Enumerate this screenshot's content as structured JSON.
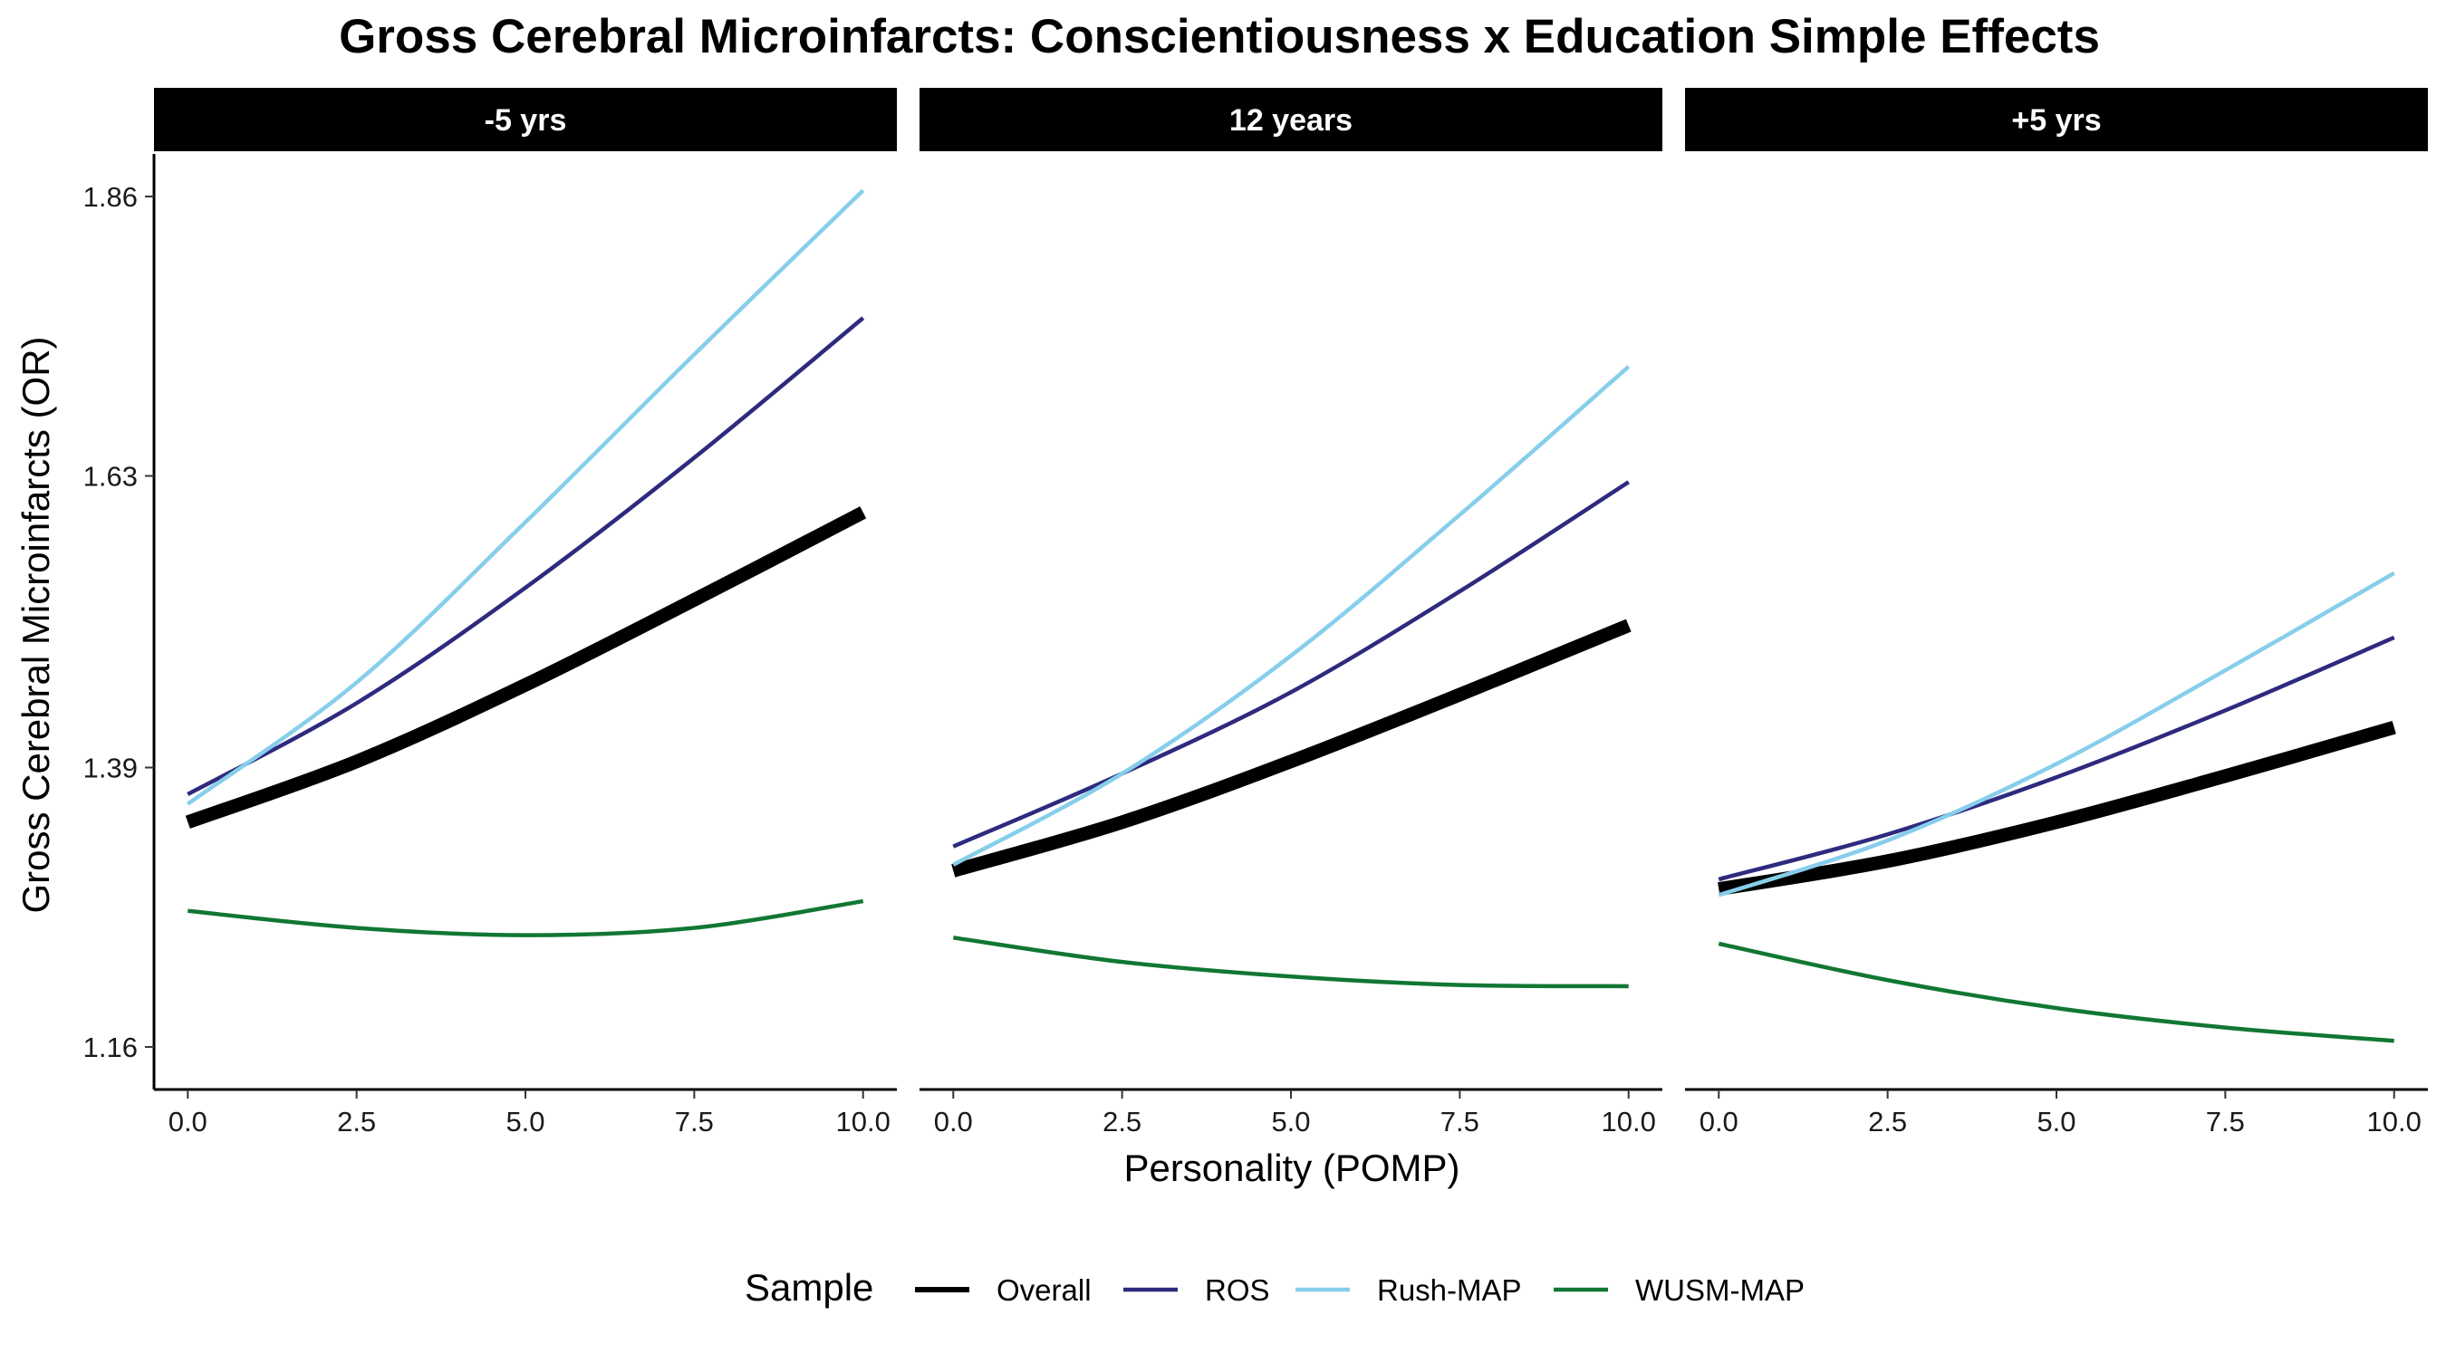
{
  "title": "Gross Cerebral Microinfarcts: Conscientiousness x Education Simple Effects",
  "xlabel": "Personality (POMP)",
  "ylabel": "Gross Cerebral Microinfarcts (OR)",
  "legend": {
    "title": "Sample",
    "items": [
      "Overall",
      "ROS",
      "Rush-MAP",
      "WUSM-MAP"
    ]
  },
  "colors": {
    "Overall": "#000000",
    "ROS": "#2e2a7e",
    "Rush-MAP": "#87ceeb",
    "WUSM-MAP": "#117733"
  },
  "chart_data": {
    "type": "line",
    "title": "Gross Cerebral Microinfarcts: Conscientiousness x Education Simple Effects",
    "xlabel": "Personality (POMP)",
    "ylabel": "Gross Cerebral Microinfarcts (OR)",
    "xlim": [
      -0.5,
      10.5
    ],
    "ylim": [
      1.125,
      1.895
    ],
    "x_ticks": [
      0,
      2.5,
      5,
      7.5,
      10
    ],
    "x_tick_labels": [
      "0.0",
      "2.5",
      "5.0",
      "7.5",
      "10.0"
    ],
    "y_ticks": [
      1.16,
      1.39,
      1.63,
      1.86
    ],
    "y_tick_labels": [
      "1.16",
      "1.39",
      "1.63",
      "1.86"
    ],
    "x": [
      0,
      2.5,
      5,
      7.5,
      10
    ],
    "legend_position": "bottom",
    "grid": false,
    "panels": [
      {
        "label": "-5 yrs",
        "series": [
          {
            "name": "Overall",
            "values": [
              1.345,
              1.395,
              1.458,
              1.528,
              1.6
            ]
          },
          {
            "name": "ROS",
            "values": [
              1.368,
              1.443,
              1.538,
              1.645,
              1.76
            ]
          },
          {
            "name": "Rush-MAP",
            "values": [
              1.36,
              1.46,
              1.592,
              1.73,
              1.865
            ]
          },
          {
            "name": "WUSM-MAP",
            "values": [
              1.272,
              1.258,
              1.252,
              1.258,
              1.28
            ]
          }
        ]
      },
      {
        "label": "12 years",
        "series": [
          {
            "name": "Overall",
            "values": [
              1.305,
              1.345,
              1.395,
              1.45,
              1.507
            ]
          },
          {
            "name": "ROS",
            "values": [
              1.325,
              1.385,
              1.452,
              1.535,
              1.625
            ]
          },
          {
            "name": "Rush-MAP",
            "values": [
              1.31,
              1.385,
              1.482,
              1.598,
              1.72
            ]
          },
          {
            "name": "WUSM-MAP",
            "values": [
              1.25,
              1.23,
              1.218,
              1.211,
              1.21
            ]
          }
        ]
      },
      {
        "label": "+5 yrs",
        "series": [
          {
            "name": "Overall",
            "values": [
              1.29,
              1.313,
              1.345,
              1.383,
              1.423
            ]
          },
          {
            "name": "ROS",
            "values": [
              1.298,
              1.335,
              1.382,
              1.437,
              1.497
            ]
          },
          {
            "name": "Rush-MAP",
            "values": [
              1.285,
              1.33,
              1.393,
              1.47,
              1.55
            ]
          },
          {
            "name": "WUSM-MAP",
            "values": [
              1.245,
              1.215,
              1.192,
              1.176,
              1.165
            ]
          }
        ]
      }
    ]
  }
}
